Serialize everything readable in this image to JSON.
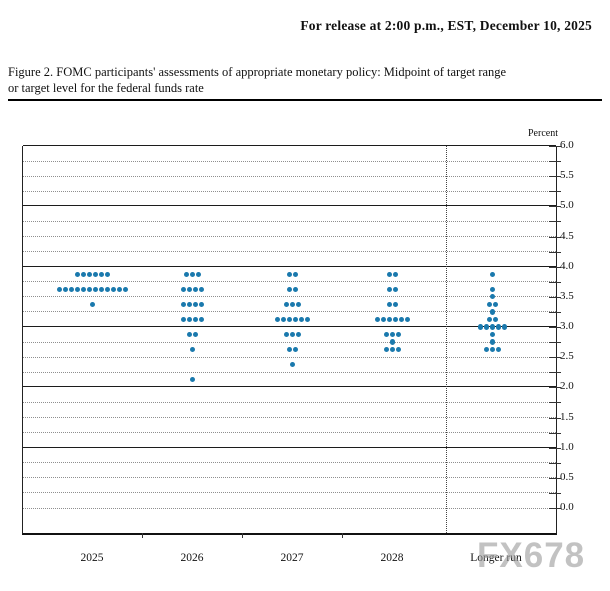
{
  "header": {
    "release_line": "For release at 2:00 p.m., EST, December 10, 2025"
  },
  "caption": {
    "line1": "Figure 2. FOMC participants' assessments of appropriate monetary policy: Midpoint of target range",
    "line2": "or target level for the federal funds rate"
  },
  "watermark": "FX678",
  "chart_data": {
    "type": "scatter",
    "subtype": "fomc-dot-plot",
    "title": "FOMC participants' assessments of appropriate monetary policy: Midpoint of target range or target level for the federal funds rate",
    "unit_label": "Percent",
    "ylabel": "Percent",
    "xlabel": "",
    "ylim": [
      0.0,
      6.0
    ],
    "y_grid_step": 0.25,
    "y_label_step": 0.5,
    "solid_lines": [
      6.0,
      5.0,
      4.0,
      3.0,
      2.0,
      1.0
    ],
    "y_tick_labels": [
      "6.0",
      "5.5",
      "5.0",
      "4.5",
      "4.0",
      "3.5",
      "3.0",
      "2.5",
      "2.0",
      "1.5",
      "1.0",
      "0.5",
      "0.0"
    ],
    "categories": [
      "2025",
      "2026",
      "2027",
      "2028",
      "Longer run"
    ],
    "separator_before_category": "Longer run",
    "grid": "dotted-quarters-solid-integers",
    "legend_position": "none",
    "dot_color": "#1a79ad",
    "series": [
      {
        "category": "2025",
        "dots": [
          {
            "rate": 3.875,
            "count": 6
          },
          {
            "rate": 3.625,
            "count": 12
          },
          {
            "rate": 3.375,
            "count": 1
          }
        ]
      },
      {
        "category": "2026",
        "dots": [
          {
            "rate": 3.875,
            "count": 3
          },
          {
            "rate": 3.625,
            "count": 4
          },
          {
            "rate": 3.375,
            "count": 4
          },
          {
            "rate": 3.125,
            "count": 4
          },
          {
            "rate": 2.875,
            "count": 2
          },
          {
            "rate": 2.625,
            "count": 1
          },
          {
            "rate": 2.125,
            "count": 1
          }
        ]
      },
      {
        "category": "2027",
        "dots": [
          {
            "rate": 3.875,
            "count": 2
          },
          {
            "rate": 3.625,
            "count": 2
          },
          {
            "rate": 3.375,
            "count": 3
          },
          {
            "rate": 3.125,
            "count": 6
          },
          {
            "rate": 2.875,
            "count": 3
          },
          {
            "rate": 2.625,
            "count": 2
          },
          {
            "rate": 2.375,
            "count": 1
          }
        ]
      },
      {
        "category": "2028",
        "dots": [
          {
            "rate": 3.875,
            "count": 2
          },
          {
            "rate": 3.625,
            "count": 2
          },
          {
            "rate": 3.375,
            "count": 2
          },
          {
            "rate": 3.125,
            "count": 6
          },
          {
            "rate": 2.875,
            "count": 3
          },
          {
            "rate": 2.75,
            "count": 1
          },
          {
            "rate": 2.625,
            "count": 3
          }
        ]
      },
      {
        "category": "Longer run",
        "dots": [
          {
            "rate": 3.875,
            "count": 1
          },
          {
            "rate": 3.625,
            "count": 1
          },
          {
            "rate": 3.5,
            "count": 1
          },
          {
            "rate": 3.375,
            "count": 2
          },
          {
            "rate": 3.25,
            "count": 1
          },
          {
            "rate": 3.125,
            "count": 2
          },
          {
            "rate": 3.0,
            "count": 5
          },
          {
            "rate": 2.875,
            "count": 1
          },
          {
            "rate": 2.75,
            "count": 1
          },
          {
            "rate": 2.625,
            "count": 3
          }
        ]
      }
    ]
  }
}
